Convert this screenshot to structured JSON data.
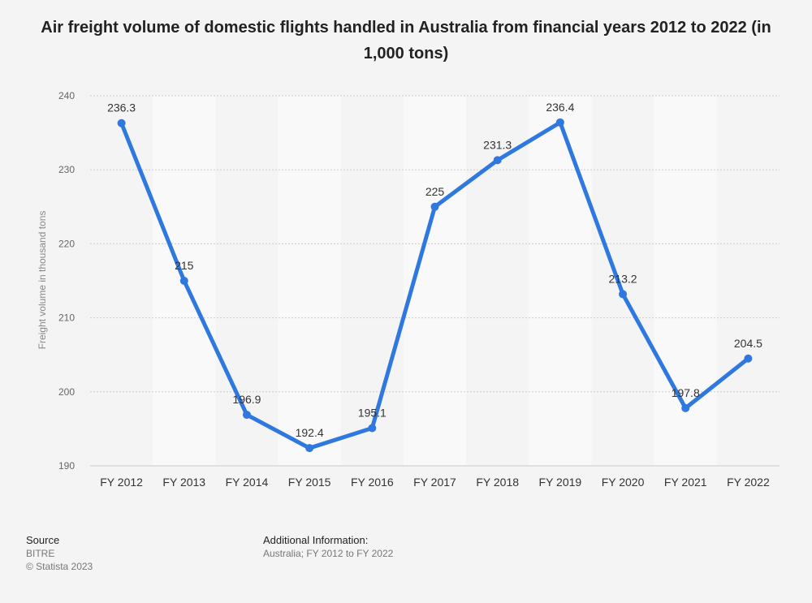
{
  "page": {
    "title": "Air freight volume of domestic flights handled in Australia from financial years 2012 to 2022 (in 1,000 tons)"
  },
  "footer": {
    "source_heading": "Source",
    "source_name": "BITRE",
    "copyright": "© Statista 2023",
    "additional_heading": "Additional Information:",
    "additional_text": "Australia; FY 2012 to FY 2022"
  },
  "chart_data": {
    "type": "line",
    "title": "Air freight volume of domestic flights handled in Australia from financial years 2012 to 2022 (in 1,000 tons)",
    "xlabel": "",
    "ylabel": "Freight volume in thousand tons",
    "categories": [
      "FY 2012",
      "FY 2013",
      "FY 2014",
      "FY 2015",
      "FY 2016",
      "FY 2017",
      "FY 2018",
      "FY 2019",
      "FY 2020",
      "FY 2021",
      "FY 2022"
    ],
    "values": [
      236.3,
      215,
      196.9,
      192.4,
      195.1,
      225,
      231.3,
      236.4,
      213.2,
      197.8,
      204.5
    ],
    "labels": [
      "236.3",
      "215",
      "196.9",
      "192.4",
      "195.1",
      "225",
      "231.3",
      "236.4",
      "213.2",
      "197.8",
      "204.5"
    ],
    "ylim": [
      190,
      240
    ],
    "yticks": [
      190,
      200,
      210,
      220,
      230,
      240
    ],
    "grid": true,
    "line_color": "#2f78df",
    "band_color": "#f9f9f9",
    "grid_color": "#cccccc",
    "legend": "none"
  }
}
